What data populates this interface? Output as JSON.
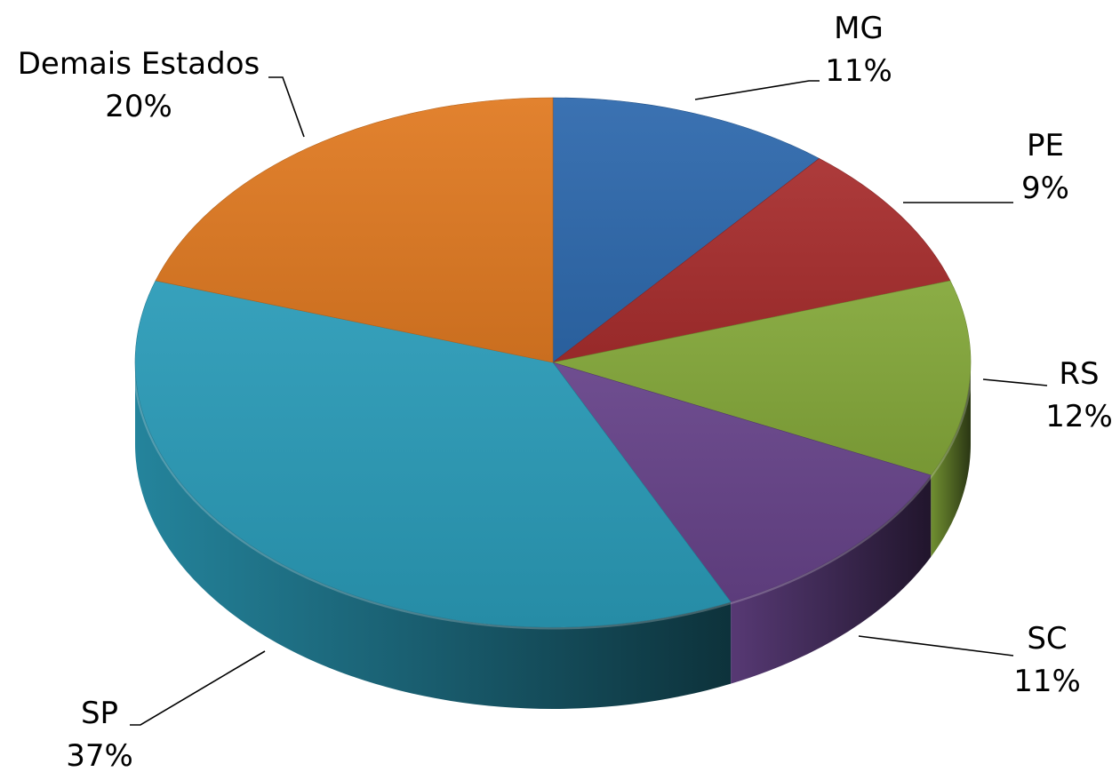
{
  "chart_data": {
    "type": "pie",
    "title": "",
    "style": "3d",
    "slices": [
      {
        "label": "MG",
        "value": 11,
        "percent_label": "11%",
        "color": "#2E69AD"
      },
      {
        "label": "PE",
        "value": 9,
        "percent_label": "9%",
        "color": "#A82E2E"
      },
      {
        "label": "RS",
        "value": 12,
        "percent_label": "12%",
        "color": "#84A83A"
      },
      {
        "label": "SC",
        "value": 11,
        "percent_label": "11%",
        "color": "#664389"
      },
      {
        "label": "SP",
        "value": 37,
        "percent_label": "37%",
        "color": "#2A9BB8"
      },
      {
        "label": "Demais Estados",
        "value": 20,
        "percent_label": "20%",
        "color": "#E07A22"
      }
    ],
    "legend": "none"
  }
}
